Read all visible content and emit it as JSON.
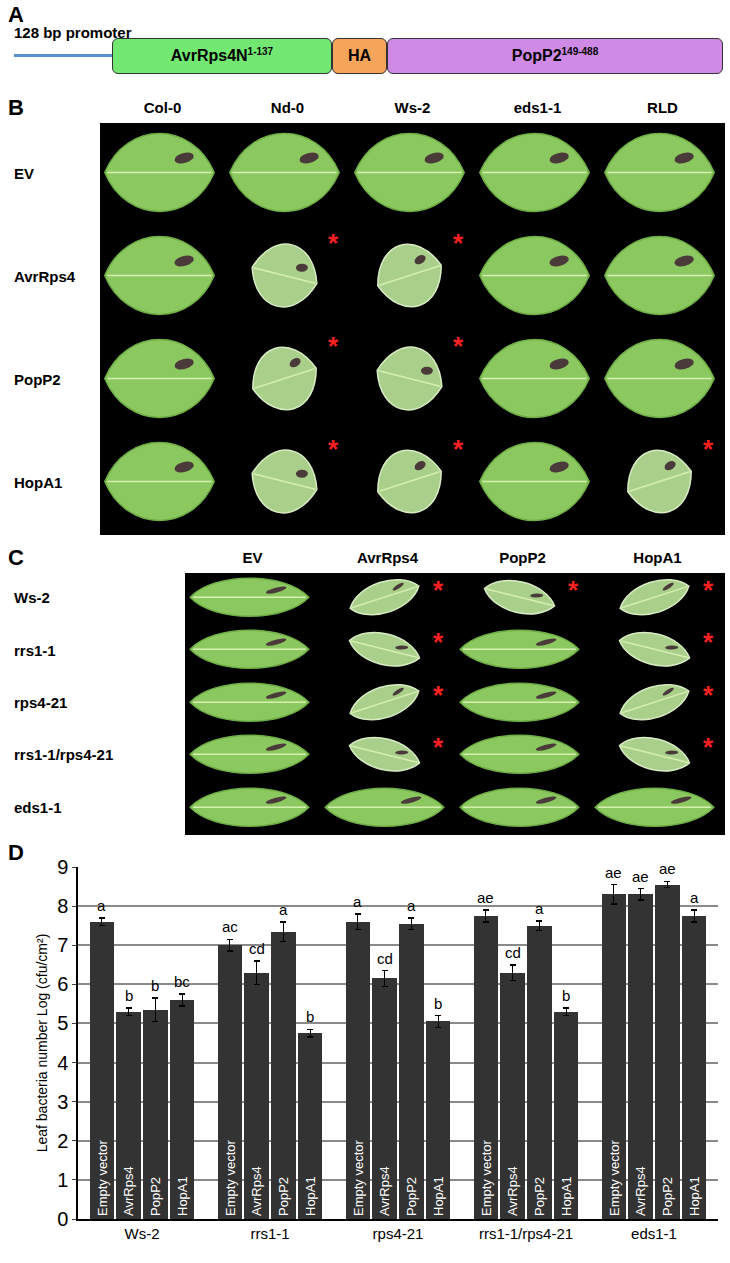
{
  "diagram": {
    "label": "A",
    "promoter": "128 bp promoter",
    "segments": [
      {
        "text": "AvrRps4N",
        "sup": "1-137",
        "color": "#72e872"
      },
      {
        "text": "HA",
        "color": "#f5a55a"
      },
      {
        "text": "PopP2",
        "sup": "149-488",
        "color": "#cf8ae6"
      }
    ]
  },
  "leaf_panels": [
    {
      "label": "B",
      "columns": [
        "Col-0",
        "Nd-0",
        "Ws-2",
        "eds1-1",
        "RLD"
      ],
      "rows": [
        "EV",
        "AvrRps4",
        "PopP2",
        "HopA1"
      ],
      "marker_text": "*",
      "hr": [
        [
          false,
          false,
          false,
          false,
          false
        ],
        [
          false,
          true,
          true,
          false,
          false
        ],
        [
          false,
          true,
          true,
          false,
          false
        ],
        [
          false,
          true,
          true,
          false,
          true
        ]
      ]
    },
    {
      "label": "C",
      "columns": [
        "EV",
        "AvrRps4",
        "PopP2",
        "HopA1"
      ],
      "rows": [
        "Ws-2",
        "rrs1-1",
        "rps4-21",
        "rrs1-1/rps4-21",
        "eds1-1"
      ],
      "marker_text": "*",
      "hr": [
        [
          false,
          true,
          true,
          true
        ],
        [
          false,
          true,
          false,
          true
        ],
        [
          false,
          true,
          false,
          true
        ],
        [
          false,
          true,
          false,
          true
        ],
        [
          false,
          false,
          false,
          false
        ]
      ]
    }
  ],
  "chart_data": {
    "type": "bar",
    "panel_label": "D",
    "y_label": "Leaf bacteria number Log (cfu/cm²)",
    "categories": [
      "Ws-2",
      "rrs1-1",
      "rps4-21",
      "rrs1-1/rps4-21",
      "eds1-1"
    ],
    "series": [
      {
        "name": "Empty vector",
        "color": "#333333",
        "values": [
          7.6,
          7.0,
          7.6,
          7.75,
          8.3
        ],
        "errors": [
          0.1,
          0.15,
          0.2,
          0.15,
          0.25
        ],
        "letters": [
          "a",
          "ac",
          "a",
          "ae",
          "ae"
        ]
      },
      {
        "name": "AvrRps4",
        "color": "#333333",
        "values": [
          5.3,
          6.3,
          6.15,
          6.3,
          8.3
        ],
        "errors": [
          0.1,
          0.3,
          0.2,
          0.2,
          0.15
        ],
        "letters": [
          "b",
          "cd",
          "cd",
          "cd",
          "ae"
        ]
      },
      {
        "name": "PopP2",
        "color": "#333333",
        "values": [
          5.35,
          7.35,
          7.55,
          7.5,
          8.55
        ],
        "errors": [
          0.3,
          0.25,
          0.15,
          0.12,
          0.08
        ],
        "letters": [
          "b",
          "a",
          "a",
          "a",
          "ae"
        ]
      },
      {
        "name": "HopA1",
        "color": "#333333",
        "values": [
          5.6,
          4.75,
          5.05,
          5.3,
          7.75
        ],
        "errors": [
          0.15,
          0.1,
          0.15,
          0.1,
          0.15
        ],
        "letters": [
          "bc",
          "b",
          "b",
          "b",
          "a"
        ]
      }
    ],
    "ylim": [
      0,
      9
    ],
    "yticks": [
      0,
      1,
      2,
      3,
      4,
      5,
      6,
      7,
      8,
      9
    ],
    "grid": true
  }
}
